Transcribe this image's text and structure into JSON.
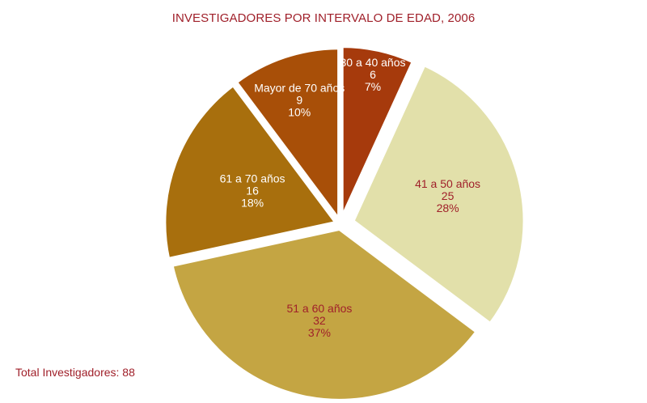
{
  "chart_data": {
    "type": "pie",
    "title": "INVESTIGADORES POR INTERVALO DE EDAD, 2006",
    "slices": [
      {
        "label": "30 a 40 años",
        "value": 6,
        "percent": "7%",
        "color": "#a63a0c",
        "text_color": "#ffffff"
      },
      {
        "label": "41 a 50 años",
        "value": 25,
        "percent": "28%",
        "color": "#e2e0aa",
        "text_color": "#a0202a"
      },
      {
        "label": "51 a 60 años",
        "value": 32,
        "percent": "37%",
        "color": "#c4a543",
        "text_color": "#a0202a"
      },
      {
        "label": "61 a 70 años",
        "value": 16,
        "percent": "18%",
        "color": "#a86f0d",
        "text_color": "#ffffff"
      },
      {
        "label": "Mayor de 70 años",
        "value": 9,
        "percent": "10%",
        "color": "#a84f08",
        "text_color": "#ffffff"
      }
    ]
  },
  "footer": {
    "total": "Total Investigadores: 88"
  },
  "colors": {
    "title": "#a0202a",
    "background": "#ffffff"
  }
}
